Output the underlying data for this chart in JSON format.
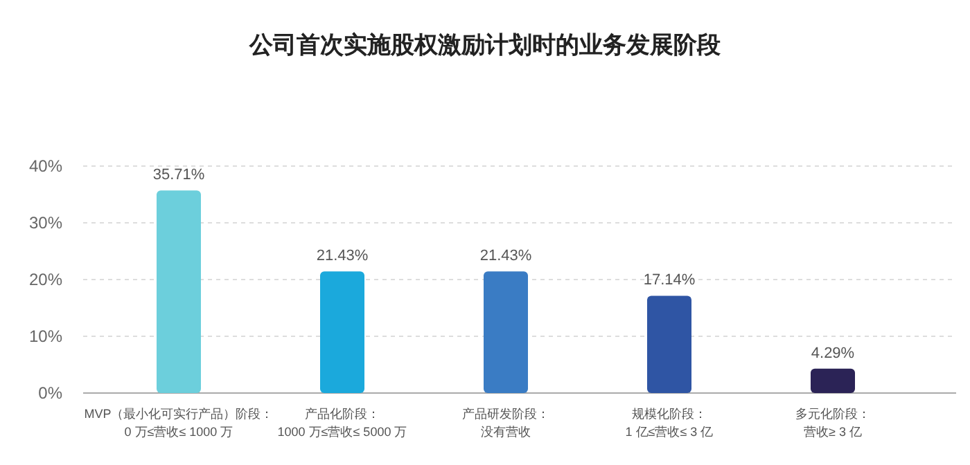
{
  "chart_data": {
    "type": "bar",
    "title": "公司首次实施股权激励计划时的业务发展阶段",
    "categories": [
      "MVP（最小化可实行产品）阶段：0 万≤营收≤ 1000 万",
      "产品化阶段：1000 万≤营收≤ 5000 万",
      "产品研发阶段：没有营收",
      "规模化阶段：1 亿≤营收≤ 3 亿",
      "多元化阶段：营收≥ 3 亿"
    ],
    "values": [
      35.71,
      21.43,
      21.43,
      17.14,
      4.29
    ],
    "value_labels": [
      "35.71%",
      "21.43%",
      "21.43%",
      "17.14%",
      "4.29%"
    ],
    "colors": [
      "#6ccfdc",
      "#1ba9dc",
      "#3a7cc4",
      "#2f55a4",
      "#2b2356"
    ],
    "ylim": [
      0,
      40
    ],
    "yticks": [
      {
        "value": 0,
        "label": "0%"
      },
      {
        "value": 10,
        "label": "10%"
      },
      {
        "value": 20,
        "label": "20%"
      },
      {
        "value": 30,
        "label": "30%"
      },
      {
        "value": 40,
        "label": "40%"
      }
    ],
    "grid": "y"
  }
}
